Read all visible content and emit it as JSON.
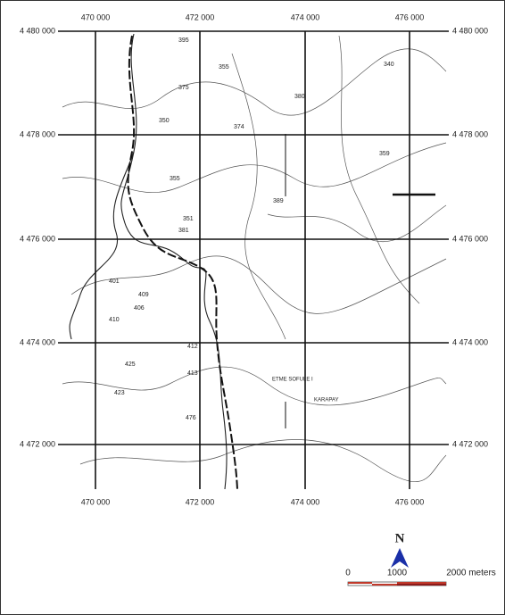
{
  "grid": {
    "x_labels": [
      "470 000",
      "472 000",
      "474 000",
      "476 000"
    ],
    "y_labels": [
      "4 480 000",
      "4 478 000",
      "4 476 000",
      "4 474 000",
      "4 472 000"
    ]
  },
  "map_labels": [
    "395",
    "355",
    "375",
    "340",
    "380",
    "350",
    "374",
    "355",
    "359",
    "351",
    "381",
    "389",
    "401",
    "409",
    "406",
    "410",
    "412",
    "413",
    "423",
    "425",
    "476",
    "KARAPAY",
    "ETME SOFULE I"
  ],
  "north": "N",
  "scale_bar": {
    "labels": [
      "0",
      "1000",
      "2000 meters"
    ]
  }
}
